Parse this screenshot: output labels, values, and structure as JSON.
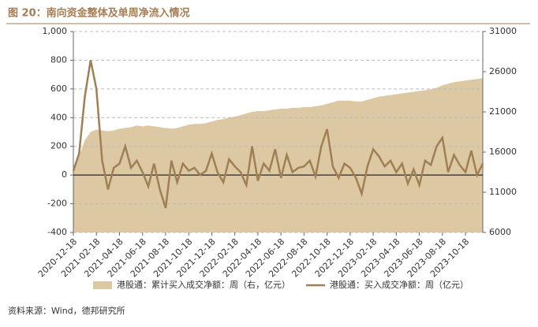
{
  "chart_data": {
    "type": "area-line",
    "title": "图 20：南向资金整体及单周净流入情况",
    "source": "资料来源：Wind，德邦研究所",
    "categories": [
      "2020-12-18",
      null,
      null,
      null,
      "2021-02-18",
      null,
      null,
      null,
      "2021-04-18",
      null,
      null,
      null,
      "2021-06-18",
      null,
      null,
      null,
      "2021-08-18",
      null,
      null,
      null,
      "2021-10-18",
      null,
      null,
      null,
      "2021-12-18",
      null,
      null,
      null,
      "2022-02-18",
      null,
      null,
      null,
      "2022-04-18",
      null,
      null,
      null,
      "2022-06-18",
      null,
      null,
      null,
      "2022-08-18",
      null,
      null,
      null,
      "2022-10-18",
      null,
      null,
      null,
      "2022-12-18",
      null,
      null,
      null,
      "2023-02-18",
      null,
      null,
      null,
      "2023-04-18",
      null,
      null,
      null,
      "2023-06-18",
      null,
      null,
      null,
      "2023-08-18",
      null,
      null,
      null,
      "2023-10-18",
      null,
      null,
      null
    ],
    "series": [
      {
        "name": "港股通：累计买入成交净额：周（右，亿元）",
        "color": "#dcc8a2",
        "axis": "y2",
        "kind": "area",
        "values": [
          13800,
          15500,
          17500,
          18500,
          18800,
          18700,
          18600,
          18700,
          18900,
          19000,
          19100,
          19300,
          19200,
          19300,
          19200,
          19100,
          19000,
          18900,
          19000,
          19200,
          19400,
          19500,
          19500,
          19600,
          19800,
          20000,
          20100,
          20300,
          20400,
          20600,
          20800,
          21000,
          21100,
          21100,
          21200,
          21300,
          21400,
          21400,
          21500,
          21500,
          21600,
          21600,
          21700,
          21800,
          22000,
          22200,
          22400,
          22400,
          22400,
          22300,
          22300,
          22500,
          22700,
          22900,
          23000,
          23100,
          23200,
          23300,
          23400,
          23500,
          23600,
          23700,
          23800,
          24000,
          24300,
          24500,
          24700,
          24800,
          24900,
          25000,
          25100,
          25200
        ]
      },
      {
        "name": "港股通：买入成交净额：周（亿元）",
        "color": "#a07f55",
        "kind": "line",
        "values": [
          30,
          150,
          550,
          800,
          600,
          100,
          -100,
          50,
          80,
          200,
          50,
          100,
          20,
          -80,
          80,
          -100,
          -230,
          100,
          -50,
          80,
          30,
          50,
          0,
          30,
          150,
          20,
          -50,
          110,
          60,
          20,
          -70,
          200,
          -40,
          80,
          30,
          180,
          -20,
          140,
          20,
          50,
          60,
          100,
          -10,
          200,
          320,
          60,
          -20,
          80,
          50,
          -20,
          -130,
          60,
          180,
          130,
          60,
          100,
          20,
          80,
          -60,
          40,
          -70,
          100,
          70,
          200,
          260,
          20,
          140,
          70,
          20,
          170,
          0,
          80
        ]
      }
    ],
    "ylim": [
      -400,
      1000
    ],
    "yticks": [
      -400,
      -200,
      0,
      200,
      400,
      600,
      800,
      {
        "value": 1000,
        "label": "1,000"
      }
    ],
    "y2lim": [
      6000,
      31000
    ],
    "y2ticks": [
      6000,
      11000,
      16000,
      21000,
      26000,
      31000
    ],
    "grid": true
  }
}
